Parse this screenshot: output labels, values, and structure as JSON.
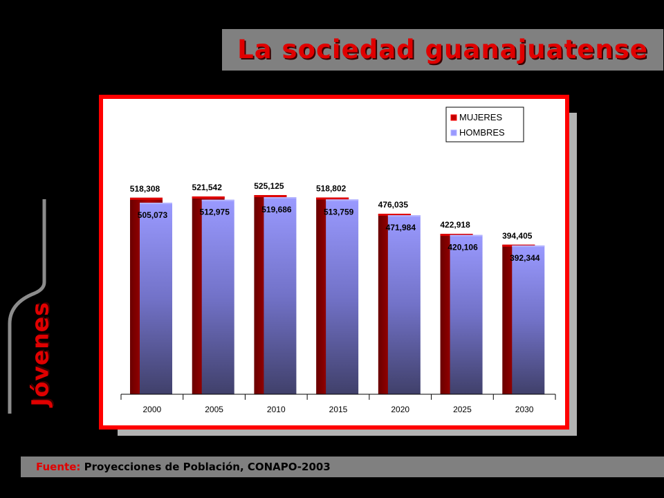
{
  "header": {
    "title": "La sociedad guanajuatense"
  },
  "side": {
    "label": "Jóvenes"
  },
  "footer": {
    "label": "Fuente:",
    "source": "Proyecciones de Población, CONAPO-2003"
  },
  "colors": {
    "mujeres": "#c00000",
    "hombres": "#9999ff",
    "frame": "#ff0000"
  },
  "chart_data": {
    "type": "bar",
    "categories": [
      "2000",
      "2005",
      "2010",
      "2015",
      "2020",
      "2025",
      "2030"
    ],
    "series": [
      {
        "name": "MUJERES",
        "values": [
          518308,
          521542,
          525125,
          518802,
          476035,
          422918,
          394405
        ],
        "labels": [
          "518,308",
          "521,542",
          "525,125",
          "518,802",
          "476,035",
          "422,918",
          "394,405"
        ]
      },
      {
        "name": "HOMBRES",
        "values": [
          505073,
          512975,
          519686,
          513759,
          471984,
          420106,
          392344
        ],
        "labels": [
          "505,073",
          "512,975",
          "519,686",
          "513,759",
          "471,984",
          "420,106",
          "392,344"
        ]
      }
    ],
    "title": "",
    "xlabel": "",
    "ylabel": "",
    "ylim": [
      0,
      580000
    ],
    "grid": false,
    "legend": "top-right"
  }
}
